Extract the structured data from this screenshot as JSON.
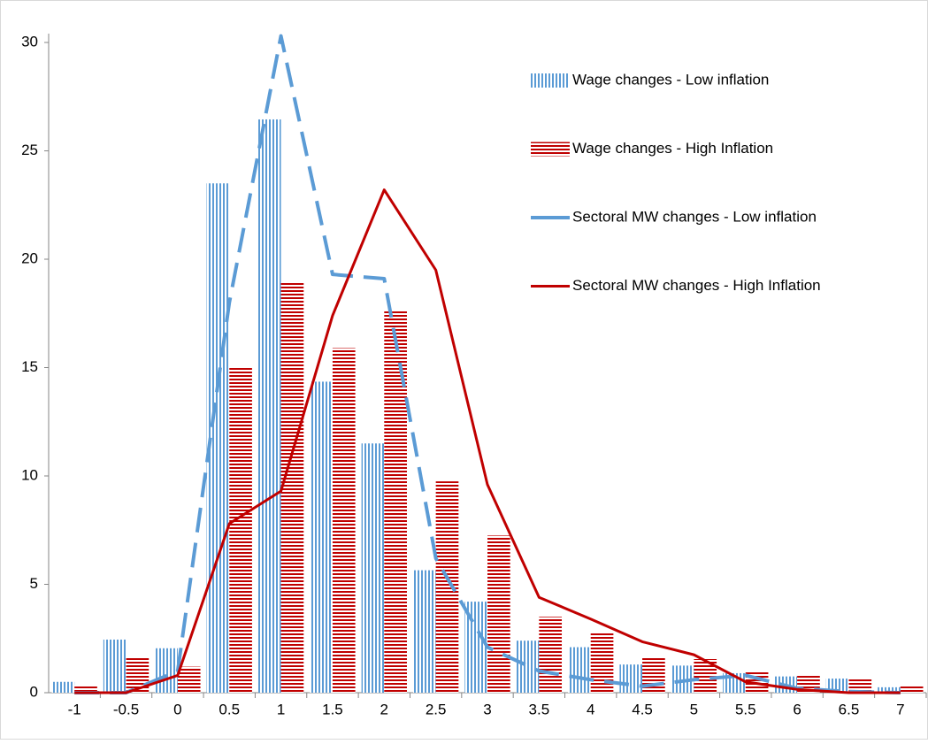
{
  "chart_data": {
    "type": "bar",
    "categories": [
      "-1",
      "-0.5",
      "0",
      "0.5",
      "1",
      "1.5",
      "2",
      "2.5",
      "3",
      "3.5",
      "4",
      "4.5",
      "5",
      "5.5",
      "6",
      "6.5",
      "7"
    ],
    "ylim": [
      0,
      30
    ],
    "yticks": [
      0,
      5,
      10,
      15,
      20,
      25,
      30
    ],
    "series": [
      {
        "name": "Wage changes - Low inflation",
        "type": "bar",
        "pattern": "vertical",
        "color": "#5b9bd5",
        "values": [
          0.5,
          2.45,
          2.05,
          23.5,
          26.45,
          14.35,
          11.5,
          5.65,
          4.2,
          2.4,
          2.1,
          1.3,
          1.25,
          0.9,
          0.75,
          0.65,
          0.25
        ]
      },
      {
        "name": "Wage changes - High Inflation",
        "type": "bar",
        "pattern": "horizontal",
        "color": "#c00000",
        "values": [
          0.35,
          1.65,
          1.2,
          15.0,
          18.9,
          15.9,
          17.6,
          9.75,
          7.25,
          3.5,
          2.8,
          1.65,
          1.55,
          1.0,
          0.8,
          0.65,
          0.3
        ]
      },
      {
        "name": "Sectoral MW changes - Low inflation",
        "type": "line",
        "dashed": true,
        "color": "#5b9bd5",
        "values": [
          0,
          0,
          1.0,
          18,
          30.3,
          19.3,
          19.1,
          6.2,
          2.1,
          1.0,
          0.6,
          0.3,
          0.6,
          0.8,
          0.2,
          0.05,
          0
        ]
      },
      {
        "name": "Sectoral MW changes - High Inflation",
        "type": "line",
        "dashed": false,
        "color": "#c00000",
        "values": [
          0,
          0,
          0.8,
          7.8,
          9.3,
          17.4,
          23.2,
          19.5,
          9.6,
          4.4,
          3.4,
          2.35,
          1.75,
          0.5,
          0.15,
          0,
          0
        ]
      }
    ]
  }
}
